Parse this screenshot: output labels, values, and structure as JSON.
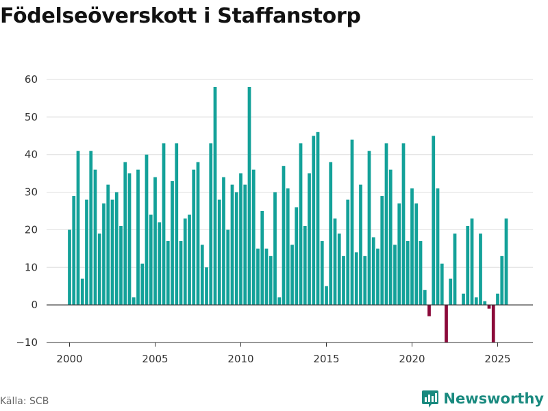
{
  "title": "Födelseöverskott i Staffanstorp",
  "source": "Källa: SCB",
  "brand": {
    "name": "Newsworthy",
    "icon": "bar-chart-logo-icon"
  },
  "colors": {
    "positive": "#13a199",
    "negative": "#8b0a3a",
    "grid": "#dddddd",
    "axis": "#333333",
    "brand": "#1a8a7f"
  },
  "chart_data": {
    "type": "bar",
    "title": "Födelseöverskott i Staffanstorp",
    "xlabel": "",
    "ylabel": "",
    "ylim": [
      -10,
      60
    ],
    "yticks": [
      -10,
      0,
      10,
      20,
      30,
      40,
      50,
      60
    ],
    "xticks": [
      2000,
      2005,
      2010,
      2015,
      2020,
      2025
    ],
    "grid": true,
    "legend": "none",
    "x_start": 2000.0,
    "x_step": 0.25,
    "values": [
      20,
      29,
      41,
      7,
      28,
      41,
      36,
      19,
      27,
      32,
      28,
      30,
      21,
      38,
      35,
      2,
      36,
      11,
      40,
      24,
      34,
      22,
      43,
      17,
      33,
      43,
      17,
      23,
      24,
      36,
      38,
      16,
      10,
      43,
      58,
      28,
      34,
      20,
      32,
      30,
      35,
      32,
      58,
      36,
      15,
      25,
      15,
      13,
      30,
      2,
      37,
      31,
      16,
      26,
      43,
      21,
      35,
      45,
      46,
      17,
      5,
      38,
      23,
      19,
      13,
      28,
      44,
      14,
      32,
      13,
      41,
      18,
      15,
      29,
      43,
      36,
      16,
      27,
      43,
      17,
      31,
      27,
      17,
      4,
      -3,
      45,
      31,
      11,
      -10,
      7,
      19,
      0,
      3,
      21,
      23,
      2,
      19,
      1,
      -1,
      -10,
      3,
      13,
      23
    ]
  }
}
